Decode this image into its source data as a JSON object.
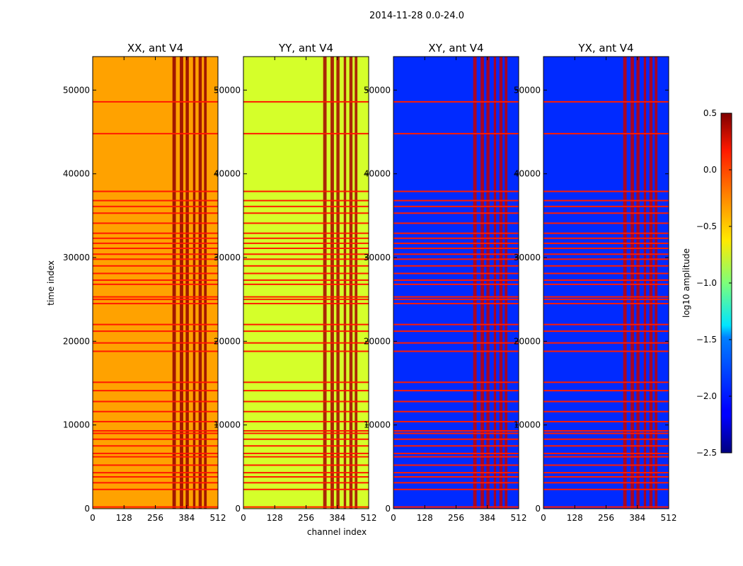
{
  "figure": {
    "suptitle": "2014-11-28 0.0-24.0",
    "xlabel": "channel index",
    "ylabel": "time index",
    "colorbar_label": "log10 amplitude"
  },
  "chart_data": {
    "type": "heatmap",
    "title": "2014-11-28 0.0-24.0",
    "xlabel": "channel index",
    "ylabel": "time index",
    "xlim": [
      0,
      512
    ],
    "ylim": [
      0,
      54000
    ],
    "xticks": [
      0,
      128,
      256,
      384,
      512
    ],
    "yticks": [
      0,
      10000,
      20000,
      30000,
      40000,
      50000
    ],
    "colorbar": {
      "label": "log10 amplitude",
      "range": [
        -2.5,
        0.5
      ],
      "ticks": [
        0.5,
        0.0,
        -0.5,
        -1.0,
        -1.5,
        -2.0,
        -2.5
      ],
      "tick_labels": [
        "0.5",
        "0.0",
        "−0.5",
        "−1.0",
        "−1.5",
        "−2.0",
        "−2.5"
      ],
      "colormap": "jet"
    },
    "panels": [
      {
        "title": "XX, ant V4",
        "baseline": -0.35,
        "rfi_level": 0.45
      },
      {
        "title": "YY, ant V4",
        "baseline": -0.75,
        "rfi_level": 0.4
      },
      {
        "title": "XY, ant V4",
        "baseline": -2.0,
        "rfi_level": 0.3
      },
      {
        "title": "YX, ant V4",
        "baseline": -2.0,
        "rfi_level": 0.3
      }
    ],
    "rfi_channel_ranges": [
      [
        326,
        340
      ],
      [
        356,
        370
      ],
      [
        380,
        393
      ],
      [
        410,
        420
      ],
      [
        433,
        446
      ],
      [
        455,
        466
      ]
    ],
    "flagged_time_rows": [
      200,
      2300,
      3100,
      3800,
      4300,
      5200,
      6200,
      6600,
      7500,
      8300,
      9000,
      9300,
      10400,
      11600,
      12800,
      14100,
      15100,
      18800,
      19800,
      21200,
      22000,
      24500,
      25000,
      25300,
      26800,
      27300,
      28100,
      29000,
      29800,
      30400,
      31100,
      31700,
      32300,
      32900,
      34100,
      35300,
      36100,
      36800,
      37900,
      44800,
      48600
    ]
  }
}
